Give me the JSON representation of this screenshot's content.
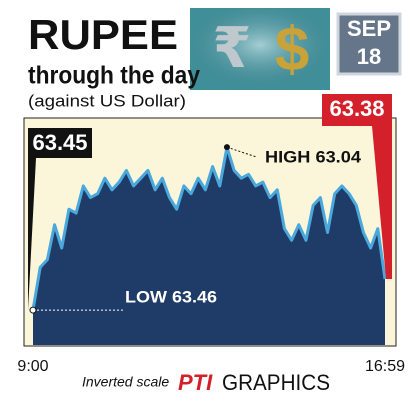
{
  "chart_data": {
    "type": "line",
    "title": "RUPEE",
    "subtitle": "through the day",
    "note": "(against US Dollar)",
    "date_month": "SEP",
    "date_day": "18",
    "open_label": "63.45",
    "close_label": "63.38",
    "high_label": "HIGH 63.04",
    "low_label": "LOW 63.46",
    "scale_note": "Inverted scale",
    "credit_logo": "PTI",
    "credit": "GRAPHICS",
    "categories": [
      "9:00",
      null,
      null,
      null,
      null,
      null,
      null,
      null,
      null,
      null,
      null,
      null,
      null,
      null,
      null,
      null,
      null,
      null,
      null,
      null,
      null,
      null,
      null,
      null,
      null,
      null,
      null,
      null,
      null,
      null,
      null,
      null,
      null,
      null,
      null,
      null,
      null,
      null,
      null,
      null,
      null,
      null,
      null,
      null,
      null,
      null,
      null,
      null,
      null,
      "16:59"
    ],
    "series": [
      {
        "color": "#4aa8dc",
        "fill": "#1f3b68",
        "values": [
          63.46,
          63.35,
          63.33,
          63.24,
          63.3,
          63.2,
          63.21,
          63.14,
          63.17,
          63.16,
          63.12,
          63.15,
          63.13,
          63.1,
          63.14,
          63.12,
          63.1,
          63.15,
          63.12,
          63.17,
          63.2,
          63.14,
          63.16,
          63.12,
          63.15,
          63.09,
          63.14,
          63.04,
          63.1,
          63.12,
          63.11,
          63.14,
          63.13,
          63.17,
          63.15,
          63.25,
          63.28,
          63.24,
          63.28,
          63.19,
          63.17,
          63.26,
          63.16,
          63.14,
          63.16,
          63.19,
          63.26,
          63.3,
          63.25,
          63.38
        ]
      }
    ],
    "ylim": [
      63.55,
      62.97
    ],
    "high_index": 27,
    "low_index": 0
  }
}
